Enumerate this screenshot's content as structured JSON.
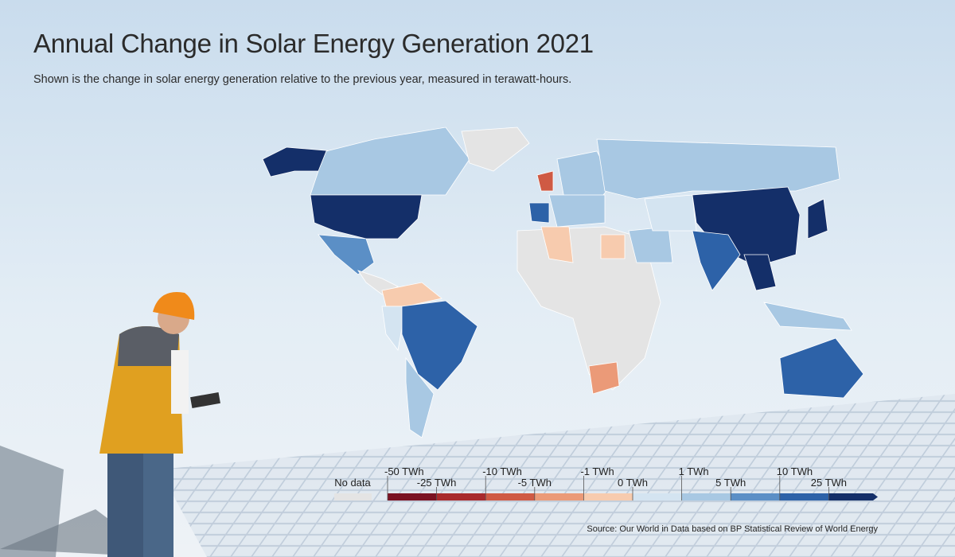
{
  "header": {
    "title": "Annual Change in Solar Energy Generation 2021",
    "subtitle": "Shown is the change in solar energy generation relative to the previous year, measured in terawatt-hours."
  },
  "legend": {
    "no_data": {
      "label": "No data",
      "color": "#e4e4e4"
    },
    "labels": [
      "-50 TWh",
      "-25 TWh",
      "-10 TWh",
      "-5 TWh",
      "-1 TWh",
      "0 TWh",
      "1 TWh",
      "5 TWh",
      "10 TWh",
      "25 TWh"
    ],
    "colors": [
      "#7a1222",
      "#a82a2c",
      "#cf5a44",
      "#eb9a78",
      "#f7cbae",
      "#d4e4f1",
      "#a8c8e3",
      "#5b8fc6",
      "#2d62a8",
      "#142f69"
    ]
  },
  "source": "Source: Our World in Data based on BP Statistical Review of World Energy"
}
